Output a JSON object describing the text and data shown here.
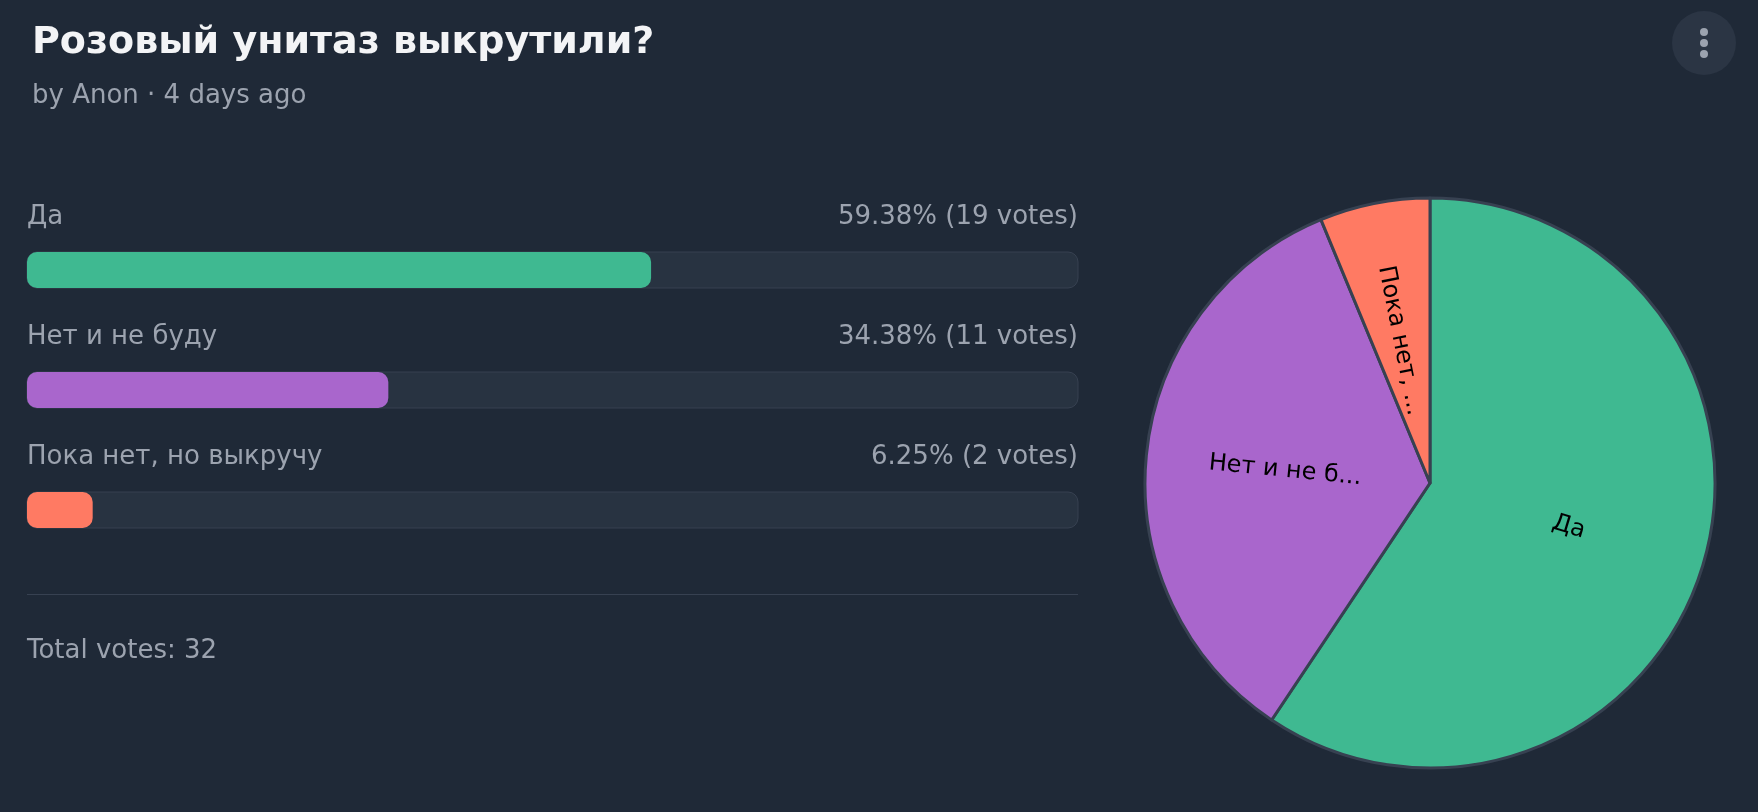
{
  "chart_data": [
    {
      "type": "bar",
      "orientation": "horizontal",
      "title": "Розовый унитаз выкрутили?",
      "subtitle": "by Anon · 4 days ago",
      "categories": [
        "Да",
        "Нет и не буду",
        "Пока нет, но выкручу"
      ],
      "values": [
        59.38,
        34.38,
        6.25
      ],
      "colors": [
        "#3fb991",
        "#a966cc",
        "#ff7a63"
      ],
      "value_labels": [
        "59.38% (19 votes)",
        "34.38% (11 votes)",
        "6.25% (2 votes)"
      ],
      "xlim": [
        0,
        100
      ],
      "annotations": [
        "Total votes: 32"
      ],
      "legend": false
    },
    {
      "type": "pie",
      "categories": [
        "Да",
        "Нет и не б...",
        "Пока нет, ..."
      ],
      "values": [
        59.38,
        34.38,
        6.25
      ],
      "colors": [
        "#3fb991",
        "#a966cc",
        "#ff7a63"
      ],
      "legend": false
    }
  ]
}
